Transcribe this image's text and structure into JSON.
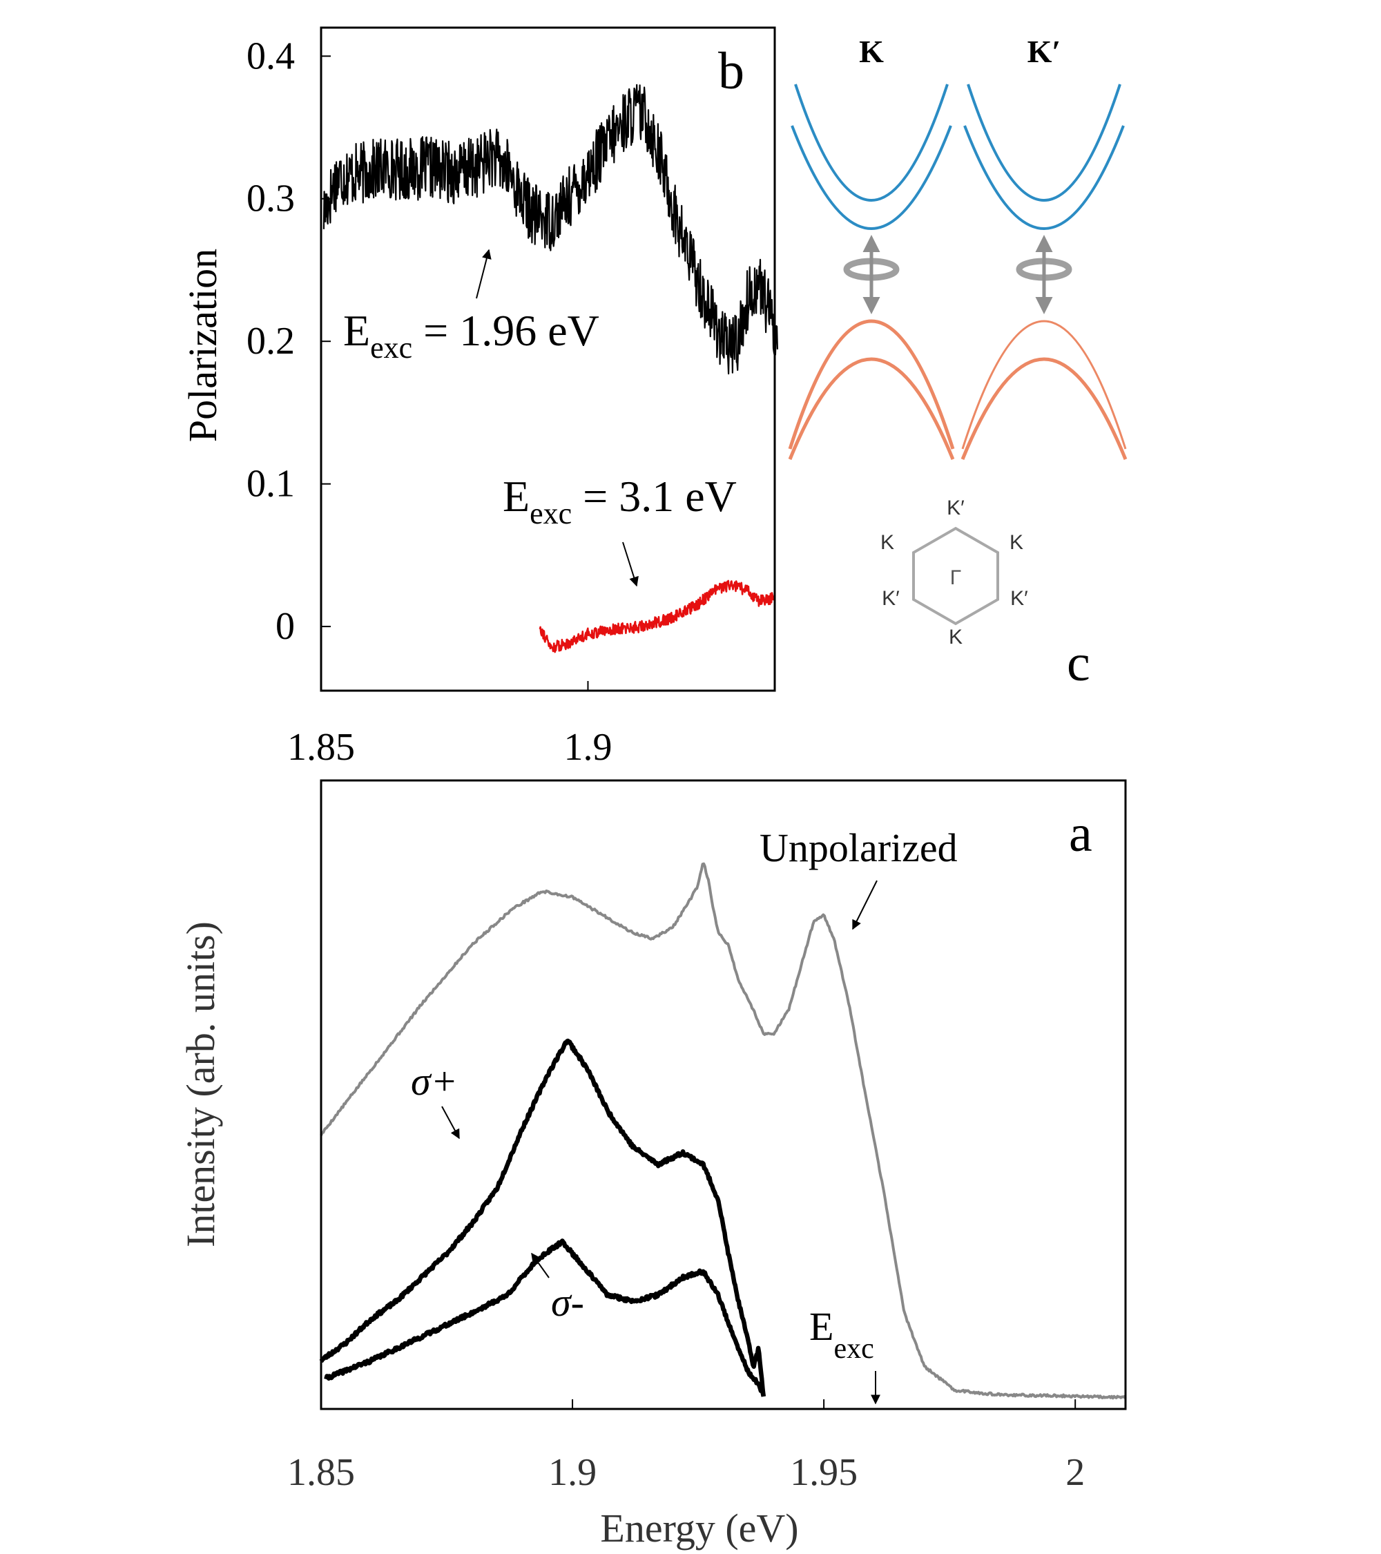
{
  "chart_data": [
    {
      "id": "panel-b",
      "type": "line",
      "panel_label": "b",
      "ylabel": "Polarization",
      "xlim": [
        1.85,
        1.935
      ],
      "ylim": [
        -0.045,
        0.42
      ],
      "x_ticks": [
        "1.85",
        "1.9"
      ],
      "x_tick_values": [
        1.85,
        1.9
      ],
      "y_ticks": [
        "0",
        "0.1",
        "0.2",
        "0.3",
        "0.4"
      ],
      "y_tick_values": [
        0,
        0.1,
        0.2,
        0.3,
        0.4
      ],
      "series": [
        {
          "name": "Eexc = 1.96 eV",
          "color": "#000000",
          "noise": 0.022,
          "points": [
            [
              1.8505,
              0.29
            ],
            [
              1.853,
              0.315
            ],
            [
              1.858,
              0.318
            ],
            [
              1.862,
              0.322
            ],
            [
              1.866,
              0.32
            ],
            [
              1.87,
              0.322
            ],
            [
              1.875,
              0.318
            ],
            [
              1.879,
              0.322
            ],
            [
              1.882,
              0.33
            ],
            [
              1.885,
              0.32
            ],
            [
              1.888,
              0.298
            ],
            [
              1.89,
              0.288
            ],
            [
              1.893,
              0.285
            ],
            [
              1.896,
              0.298
            ],
            [
              1.9,
              0.318
            ],
            [
              1.904,
              0.34
            ],
            [
              1.907,
              0.355
            ],
            [
              1.909,
              0.362
            ],
            [
              1.911,
              0.356
            ],
            [
              1.913,
              0.335
            ],
            [
              1.915,
              0.308
            ],
            [
              1.917,
              0.28
            ],
            [
              1.92,
              0.25
            ],
            [
              1.922,
              0.228
            ],
            [
              1.924,
              0.212
            ],
            [
              1.926,
              0.195
            ],
            [
              1.928,
              0.2
            ],
            [
              1.93,
              0.23
            ],
            [
              1.932,
              0.242
            ],
            [
              1.934,
              0.22
            ],
            [
              1.9355,
              0.2
            ]
          ]
        },
        {
          "name": "Eexc = 3.1 eV",
          "color": "#e51010",
          "noise": 0.004,
          "points": [
            [
              1.891,
              0.0
            ],
            [
              1.893,
              -0.015
            ],
            [
              1.896,
              -0.012
            ],
            [
              1.9,
              -0.005
            ],
            [
              1.905,
              -0.002
            ],
            [
              1.91,
              0.0
            ],
            [
              1.915,
              0.005
            ],
            [
              1.92,
              0.014
            ],
            [
              1.924,
              0.026
            ],
            [
              1.927,
              0.029
            ],
            [
              1.93,
              0.025
            ],
            [
              1.932,
              0.018
            ],
            [
              1.935,
              0.02
            ]
          ]
        }
      ],
      "annotations": [
        {
          "main": "E",
          "sub": "exc",
          "rest": " = 1.96 eV"
        },
        {
          "main": "E",
          "sub": "exc",
          "rest": " = 3.1 eV"
        }
      ]
    },
    {
      "id": "panel-c",
      "type": "diagram",
      "panel_label": "c",
      "valley_labels": [
        "K",
        "K′"
      ],
      "band_colors": {
        "conduction": "#2b8cc4",
        "valence": "#ec8864",
        "arrow": "#8e8e8e",
        "hexagon": "#a8a8a8"
      },
      "bz_labels": {
        "top": "K′",
        "upper_left": "K",
        "upper_right": "K",
        "center": "Γ",
        "lower_left": "K′",
        "lower_right": "K′",
        "bottom": "K"
      }
    },
    {
      "id": "panel-a",
      "type": "line",
      "panel_label": "a",
      "xlabel": "Energy (eV)",
      "ylabel": "Intensity (arb. units)",
      "xlim": [
        1.85,
        2.01
      ],
      "ylim": [
        0,
        1
      ],
      "x_ticks": [
        "1.85",
        "1.9",
        "1.95",
        "2"
      ],
      "x_tick_values": [
        1.85,
        1.9,
        1.95,
        2.0
      ],
      "series": [
        {
          "name": "Unpolarized",
          "color": "#888888",
          "noise": 0.002,
          "points": [
            [
              1.85,
              0.45
            ],
            [
              1.86,
              0.56
            ],
            [
              1.87,
              0.67
            ],
            [
              1.88,
              0.77
            ],
            [
              1.888,
              0.83
            ],
            [
              1.894,
              0.86
            ],
            [
              1.9,
              0.85
            ],
            [
              1.906,
              0.82
            ],
            [
              1.912,
              0.79
            ],
            [
              1.916,
              0.78
            ],
            [
              1.92,
              0.8
            ],
            [
              1.923,
              0.84
            ],
            [
              1.925,
              0.87
            ],
            [
              1.926,
              0.91
            ],
            [
              1.927,
              0.88
            ],
            [
              1.928,
              0.83
            ],
            [
              1.929,
              0.79
            ],
            [
              1.93,
              0.78
            ],
            [
              1.931,
              0.77
            ],
            [
              1.933,
              0.71
            ],
            [
              1.936,
              0.66
            ],
            [
              1.938,
              0.62
            ],
            [
              1.94,
              0.62
            ],
            [
              1.943,
              0.66
            ],
            [
              1.946,
              0.75
            ],
            [
              1.948,
              0.81
            ],
            [
              1.95,
              0.82
            ],
            [
              1.952,
              0.78
            ],
            [
              1.955,
              0.67
            ],
            [
              1.958,
              0.53
            ],
            [
              1.962,
              0.35
            ],
            [
              1.966,
              0.15
            ],
            [
              1.97,
              0.06
            ],
            [
              1.976,
              0.02
            ],
            [
              1.985,
              0.012
            ],
            [
              2.0,
              0.01
            ],
            [
              2.01,
              0.008
            ]
          ]
        },
        {
          "name": "σ+",
          "color": "#000000",
          "noise": 0.003,
          "points": [
            [
              1.85,
              0.07
            ],
            [
              1.855,
              0.1
            ],
            [
              1.86,
              0.14
            ],
            [
              1.865,
              0.17
            ],
            [
              1.87,
              0.21
            ],
            [
              1.875,
              0.25
            ],
            [
              1.88,
              0.3
            ],
            [
              1.885,
              0.36
            ],
            [
              1.89,
              0.46
            ],
            [
              1.895,
              0.55
            ],
            [
              1.899,
              0.61
            ],
            [
              1.903,
              0.56
            ],
            [
              1.907,
              0.49
            ],
            [
              1.912,
              0.43
            ],
            [
              1.917,
              0.4
            ],
            [
              1.922,
              0.42
            ],
            [
              1.926,
              0.4
            ],
            [
              1.929,
              0.34
            ],
            [
              1.931,
              0.25
            ],
            [
              1.933,
              0.17
            ],
            [
              1.935,
              0.1
            ],
            [
              1.936,
              0.06
            ],
            [
              1.937,
              0.09
            ],
            [
              1.938,
              0.01
            ]
          ]
        },
        {
          "name": "σ-",
          "color": "#000000",
          "noise": 0.003,
          "points": [
            [
              1.851,
              0.04
            ],
            [
              1.86,
              0.07
            ],
            [
              1.87,
              0.11
            ],
            [
              1.88,
              0.15
            ],
            [
              1.887,
              0.18
            ],
            [
              1.893,
              0.24
            ],
            [
              1.898,
              0.27
            ],
            [
              1.903,
              0.22
            ],
            [
              1.907,
              0.18
            ],
            [
              1.912,
              0.17
            ],
            [
              1.917,
              0.18
            ],
            [
              1.922,
              0.21
            ],
            [
              1.926,
              0.22
            ],
            [
              1.929,
              0.18
            ],
            [
              1.932,
              0.11
            ],
            [
              1.935,
              0.05
            ],
            [
              1.937,
              0.03
            ],
            [
              1.938,
              0.01
            ]
          ]
        }
      ],
      "annotations": {
        "unpolarized": "Unpolarized",
        "sigma_plus": "σ+",
        "sigma_minus": "σ-",
        "eexc_main": "E",
        "eexc_sub": "exc"
      }
    }
  ]
}
